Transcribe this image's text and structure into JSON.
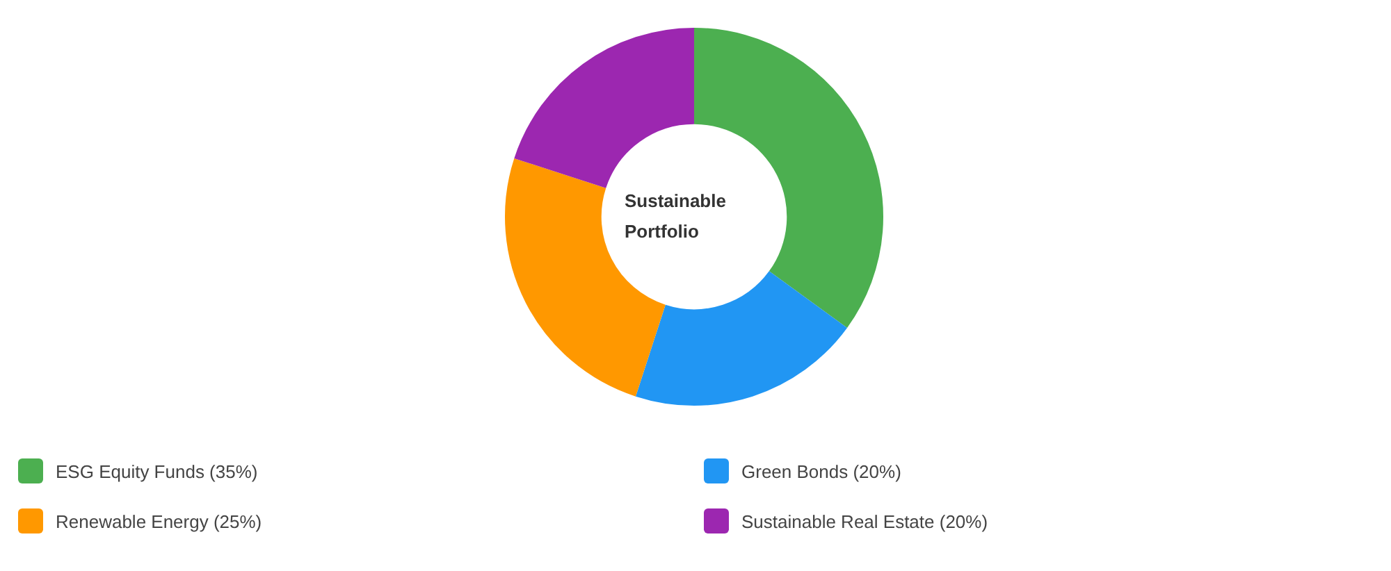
{
  "chart_data": {
    "type": "donut",
    "title": "Sustainable Portfolio",
    "categories": [
      "ESG Equity Funds (35%)",
      "Green Bonds (20%)",
      "Renewable Energy (25%)",
      "Sustainable Real Estate (20%)"
    ],
    "values": [
      35,
      20,
      25,
      20
    ],
    "colors": [
      "#4caf50",
      "#2196f3",
      "#ff9800",
      "#9c27b0"
    ],
    "legend": "bottom"
  }
}
